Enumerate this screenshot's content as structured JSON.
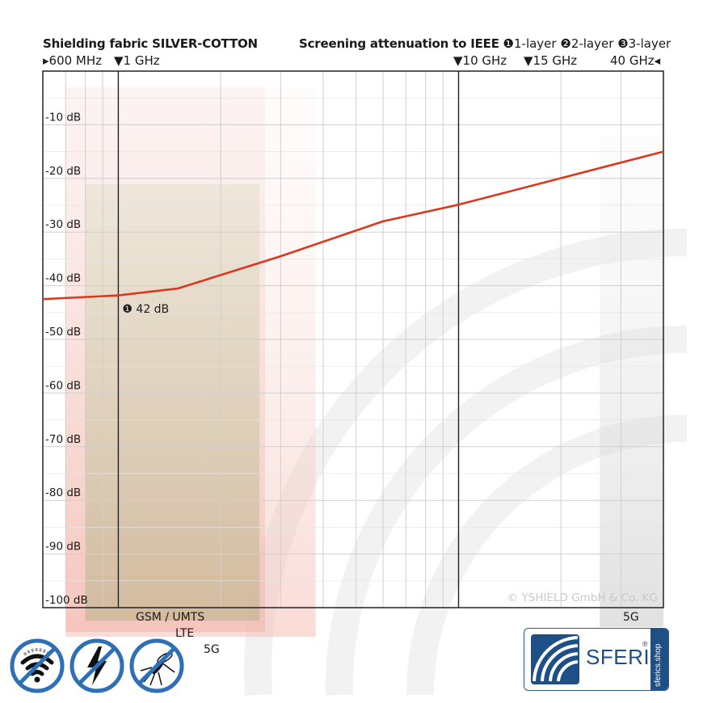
{
  "header": {
    "left_title": "Shielding fabric SILVER-COTTON",
    "right_title": "Screening attenuation to IEEE",
    "layers": [
      {
        "marker": "❶",
        "label": "1-layer"
      },
      {
        "marker": "❷",
        "label": "2-layer"
      },
      {
        "marker": "❸",
        "label": "3-layer"
      }
    ]
  },
  "freq_markers": [
    {
      "label": "600 MHz",
      "ghz": 0.6
    },
    {
      "label": "1 GHz",
      "ghz": 1
    },
    {
      "label": "10 GHz",
      "ghz": 10
    },
    {
      "label": "15 GHz",
      "ghz": 15
    },
    {
      "label": "40 GHz",
      "ghz": 40
    }
  ],
  "chart_data": {
    "type": "line",
    "title": "Shielding fabric SILVER-COTTON",
    "subtitle": "Screening attenuation to IEEE",
    "x_scale": "log",
    "x_unit": "GHz",
    "xlim": [
      0.6,
      40
    ],
    "ylim": [
      0,
      -100
    ],
    "y_ticks": [
      -10,
      -20,
      -30,
      -40,
      -50,
      -60,
      -70,
      -80,
      -90,
      -100
    ],
    "y_tick_labels": [
      "-10 dB",
      "-20 dB",
      "-30 dB",
      "-40 dB",
      "-50 dB",
      "-60 dB",
      "-70 dB",
      "-80 dB",
      "-90 dB",
      "-100 dB"
    ],
    "grid": true,
    "series": [
      {
        "name": "1-layer",
        "color": "#d9391f",
        "x": [
          0.6,
          1,
          1.5,
          3,
          6,
          10,
          40
        ],
        "y": [
          -42.5,
          -41.8,
          -40.5,
          -34.5,
          -28,
          -24.9,
          -15
        ]
      }
    ],
    "annotations": [
      {
        "text": "❶ 42 dB",
        "x": 1,
        "y": -42
      }
    ],
    "bands": [
      {
        "name": "GSM / UMTS",
        "from": 0.7,
        "to": 2.7,
        "color": "#e9a8a0"
      },
      {
        "name": "LTE",
        "from": 0.8,
        "to": 2.6,
        "color": "#b7c99a"
      },
      {
        "name": "5G",
        "from": 0.7,
        "to": 3.8,
        "color": "#f0b5aa"
      },
      {
        "name": "5G",
        "from": 26,
        "to": 40,
        "color": "#cfcfcf"
      }
    ],
    "watermark": "© YSHIELD GmbH & Co. KG"
  },
  "band_labels": {
    "gsm": "GSM / UMTS",
    "lte": "LTE",
    "g5_low": "5G",
    "g5_high": "5G"
  },
  "icons": [
    {
      "name": "no-wifi-icon"
    },
    {
      "name": "no-electric-field-icon"
    },
    {
      "name": "no-mosquito-icon"
    }
  ],
  "logo": {
    "text": "SFERICS",
    "reg": "®",
    "side": "sferics.shop"
  },
  "colors": {
    "curve": "#d9391f",
    "icon_blue": "#2f6fb5",
    "brand_blue": "#1e4f87"
  }
}
